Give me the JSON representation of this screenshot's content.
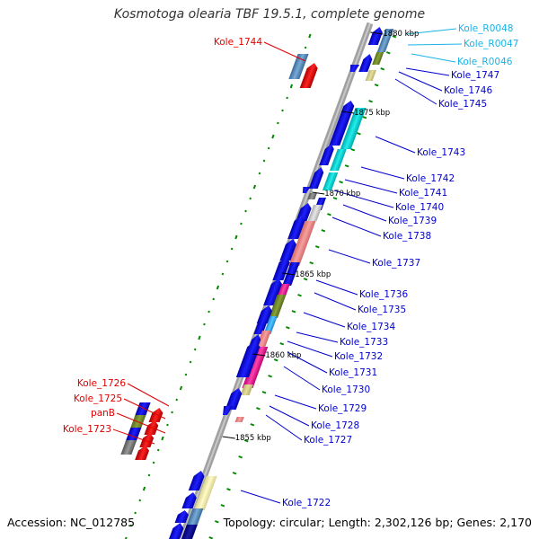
{
  "title": "Kosmotoga olearia TBF 19.5.1, complete genome",
  "accession": "Accession: NC_012785",
  "topology": "Topology: circular; Length: 2,302,126 bp; Genes: 2,170",
  "colors": {
    "backbone": "#a0a0a0",
    "label_protein": "#0000cc",
    "label_rna": "#1ab3e6",
    "label_left": "#dd0000",
    "leader": "#0000cc",
    "ticks": "#008800"
  },
  "ticks": [
    {
      "label": "1880 kbp"
    },
    {
      "label": "1875 kbp"
    },
    {
      "label": "1870 kbp"
    },
    {
      "label": "1865 kbp"
    },
    {
      "label": "1860 kbp"
    },
    {
      "label": "1855 kbp"
    }
  ],
  "gene_labels_right": [
    {
      "id": "Kole_R0048",
      "kind": "rna"
    },
    {
      "id": "Kole_R0047",
      "kind": "rna"
    },
    {
      "id": "Kole_R0046",
      "kind": "rna"
    },
    {
      "id": "Kole_1747",
      "kind": "protein"
    },
    {
      "id": "Kole_1746",
      "kind": "protein"
    },
    {
      "id": "Kole_1745",
      "kind": "protein"
    },
    {
      "id": "Kole_1743",
      "kind": "protein"
    },
    {
      "id": "Kole_1742",
      "kind": "protein"
    },
    {
      "id": "Kole_1741",
      "kind": "protein"
    },
    {
      "id": "Kole_1740",
      "kind": "protein"
    },
    {
      "id": "Kole_1739",
      "kind": "protein"
    },
    {
      "id": "Kole_1738",
      "kind": "protein"
    },
    {
      "id": "Kole_1737",
      "kind": "protein"
    },
    {
      "id": "Kole_1736",
      "kind": "protein"
    },
    {
      "id": "Kole_1735",
      "kind": "protein"
    },
    {
      "id": "Kole_1734",
      "kind": "protein"
    },
    {
      "id": "Kole_1733",
      "kind": "protein"
    },
    {
      "id": "Kole_1732",
      "kind": "protein"
    },
    {
      "id": "Kole_1731",
      "kind": "protein"
    },
    {
      "id": "Kole_1730",
      "kind": "protein"
    },
    {
      "id": "Kole_1729",
      "kind": "protein"
    },
    {
      "id": "Kole_1728",
      "kind": "protein"
    },
    {
      "id": "Kole_1727",
      "kind": "protein"
    },
    {
      "id": "Kole_1722",
      "kind": "protein"
    }
  ],
  "gene_labels_left": [
    {
      "id": "Kole_1744"
    },
    {
      "id": "Kole_1726"
    },
    {
      "id": "Kole_1725"
    },
    {
      "id": "panB"
    },
    {
      "id": "Kole_1723"
    }
  ]
}
